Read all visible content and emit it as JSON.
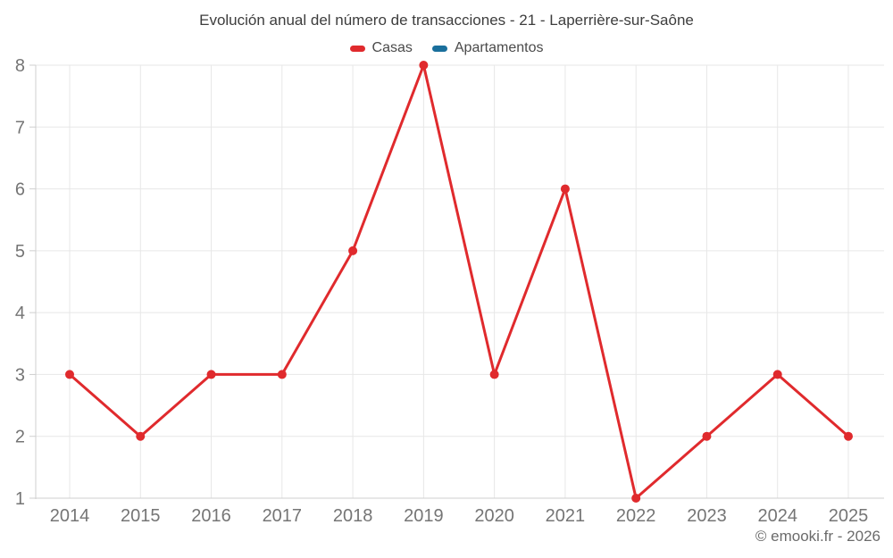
{
  "header": {
    "title": "Evolución anual del número de transacciones - 21 - Laperrière-sur-Saône"
  },
  "legend": {
    "items": [
      {
        "label": "Casas",
        "color": "#e02a2d"
      },
      {
        "label": "Apartamentos",
        "color": "#1a6f9c"
      }
    ]
  },
  "footer": {
    "credit": "© emooki.fr - 2026"
  },
  "colors": {
    "background": "#ffffff",
    "grid": "#e7e7e7",
    "axis": "#cfcfcf",
    "tick_label": "#757575",
    "title_text": "#3d3d3d",
    "legend_text": "#4a4a4a",
    "footer_text": "#6b6b6b"
  },
  "chart_data": {
    "type": "line",
    "title": "Evolución anual del número de transacciones - 21 - Laperrière-sur-Saône",
    "xlabel": "",
    "ylabel": "",
    "x": [
      2014,
      2015,
      2016,
      2017,
      2018,
      2019,
      2020,
      2021,
      2022,
      2023,
      2024,
      2025
    ],
    "series": [
      {
        "name": "Casas",
        "color": "#e02a2d",
        "values": [
          3,
          2,
          3,
          3,
          5,
          8,
          3,
          6,
          1,
          2,
          3,
          2
        ]
      },
      {
        "name": "Apartamentos",
        "color": "#1a6f9c",
        "values": []
      }
    ],
    "ylim": [
      1,
      8
    ],
    "yticks": [
      1,
      2,
      3,
      4,
      5,
      6,
      7,
      8
    ],
    "grid": true,
    "legend_position": "top",
    "marker_radius": 5,
    "line_width": 3
  }
}
